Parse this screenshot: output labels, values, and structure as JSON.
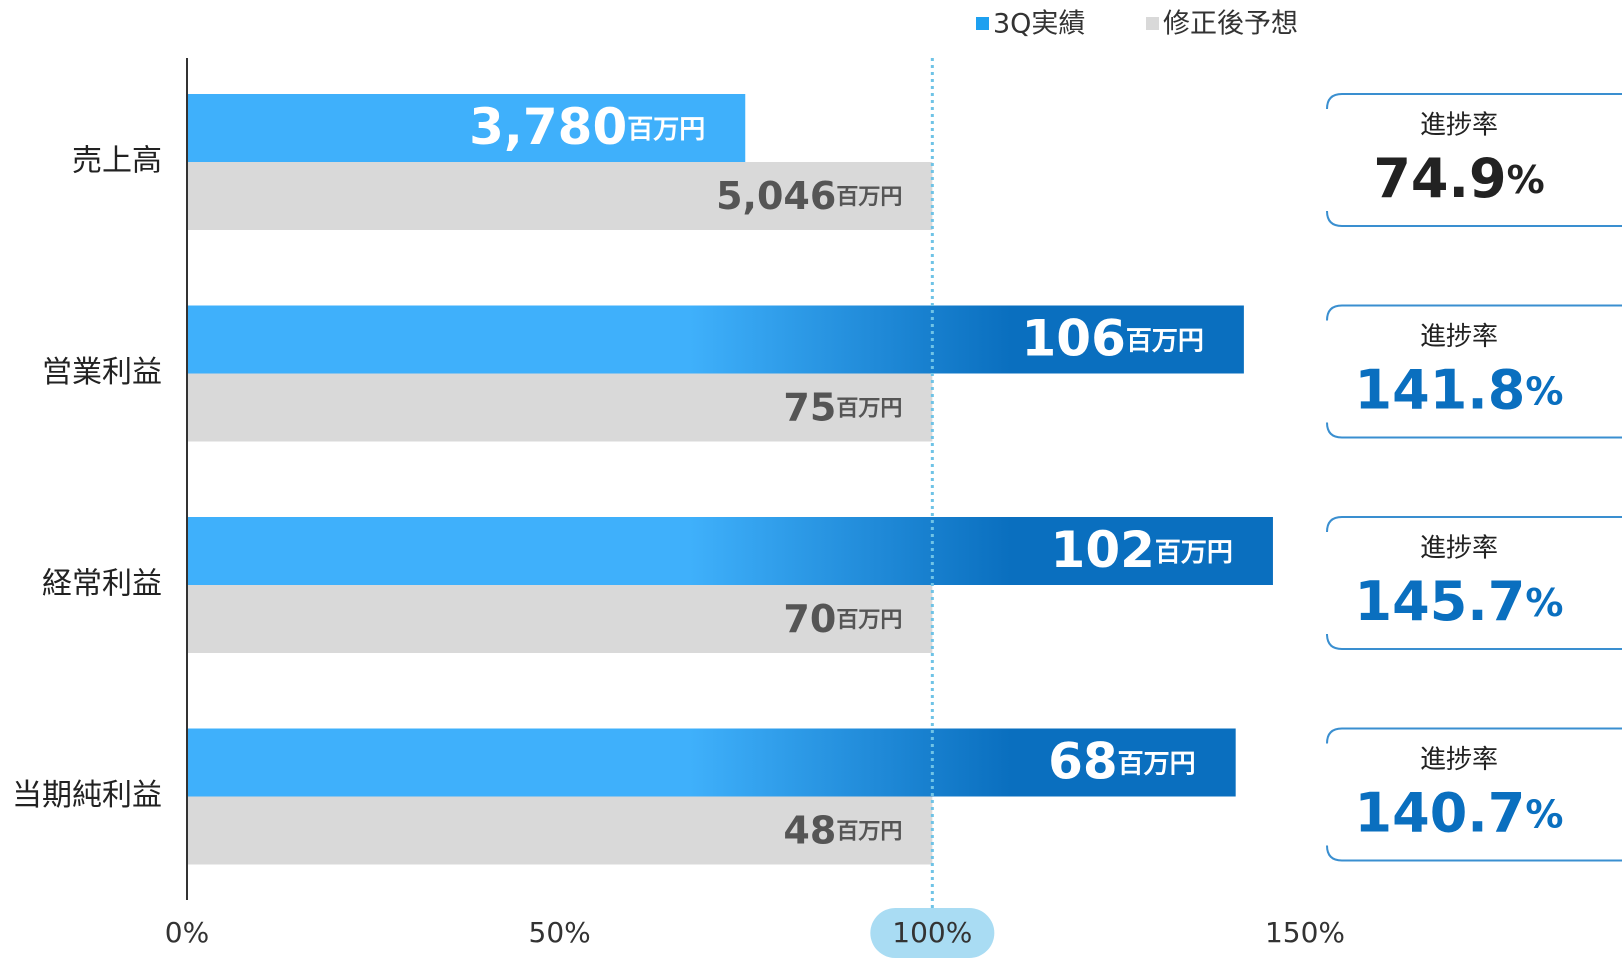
{
  "chart_data": {
    "type": "bar",
    "categories": [
      "売上高",
      "営業利益",
      "経常利益",
      "当期純利益"
    ],
    "unit": "百万円",
    "series": [
      {
        "name": "3Q実績",
        "color": "#3fb0fb",
        "values": [
          74.9,
          141.8,
          145.7,
          140.7
        ],
        "amount_labels": [
          "3,780",
          "106",
          "102",
          "68"
        ]
      },
      {
        "name": "修正後予想",
        "color": "#d9d9d9",
        "values": [
          100,
          100,
          100,
          100
        ],
        "amount_labels": [
          "5,046",
          "75",
          "70",
          "48"
        ]
      }
    ],
    "progress_label": "進捗率",
    "progress_unit": "%",
    "xlim": [
      0,
      150
    ],
    "xticks": [
      {
        "value": 0,
        "label": "0%"
      },
      {
        "value": 50,
        "label": "50%"
      },
      {
        "value": 100,
        "label": "100%"
      },
      {
        "value": 150,
        "label": "150%"
      }
    ],
    "reference": 100
  }
}
